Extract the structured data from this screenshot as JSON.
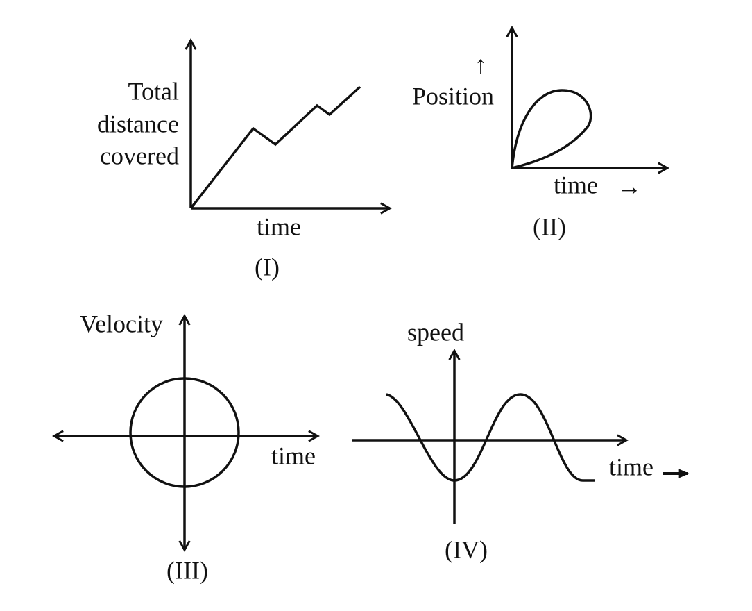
{
  "panels": [
    {
      "y_label": [
        "Total",
        "distance",
        "covered"
      ],
      "x_label": "time",
      "caption": "(I)"
    },
    {
      "y_arrow": "↑",
      "y_label": "Position",
      "x_label": "time",
      "x_arrow": "→",
      "caption": "(II)"
    },
    {
      "y_label": "Velocity",
      "x_label": "time",
      "caption": "(III)"
    },
    {
      "y_label": "speed",
      "x_label": "time",
      "caption": "(IV)"
    }
  ]
}
